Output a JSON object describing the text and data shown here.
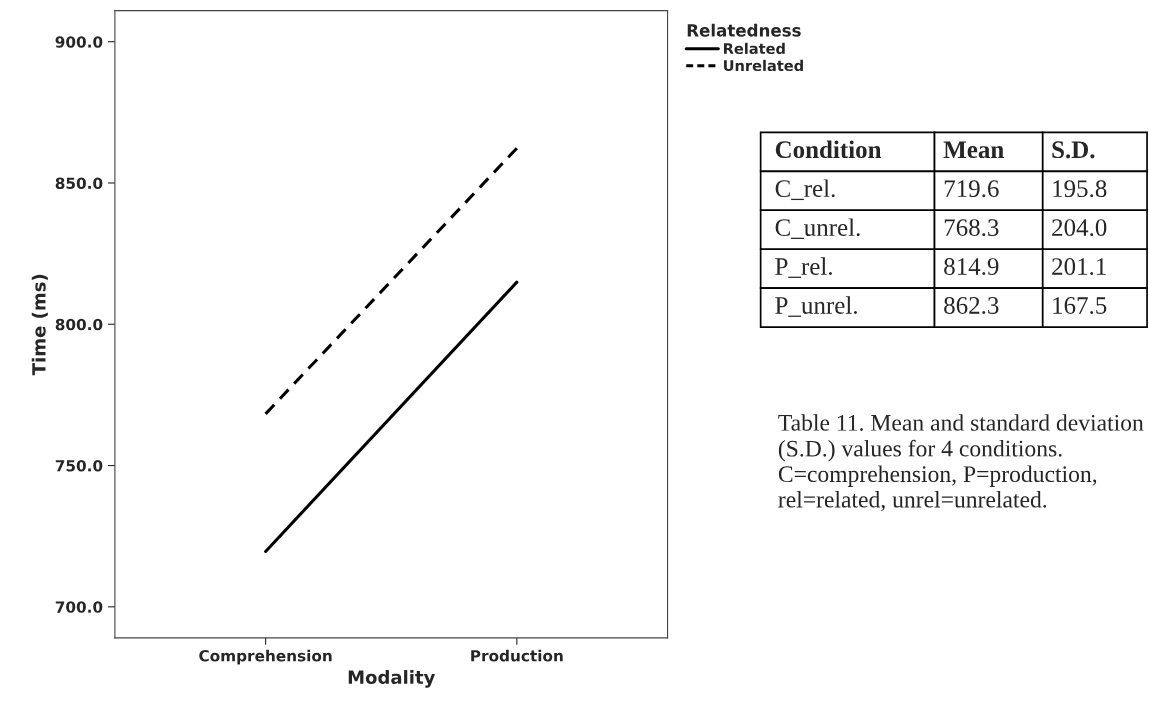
{
  "chart_data": [
    {
      "type": "line",
      "xlabel": "Modality",
      "ylabel": "Time (ms)",
      "legend_title": "Relatedness",
      "legend": "top right",
      "grid": false,
      "marker": "none",
      "categories": [
        "Comprehension",
        "Production"
      ],
      "series": [
        {
          "name": "Related",
          "color": "#000000",
          "line_style": "solid",
          "values": [
            719.6,
            814.9
          ]
        },
        {
          "name": "Unrelated",
          "color": "#000000",
          "line_style": "dashed",
          "values": [
            768.3,
            862.3
          ]
        }
      ],
      "ylim": [
        689,
        911
      ],
      "yticks": [
        {
          "value": 700,
          "label": "700.0"
        },
        {
          "value": 750,
          "label": "750.0"
        },
        {
          "value": 800,
          "label": "800.0"
        },
        {
          "value": 850,
          "label": "850.0"
        },
        {
          "value": 900,
          "label": "900.0"
        }
      ]
    },
    {
      "type": "other",
      "xlabel": "Condition",
      "categories": [
        "C_rel.",
        "C_unrel.",
        "P_rel.",
        "P_unrel."
      ],
      "series": [
        {
          "name": "Mean",
          "values": [
            719.6,
            768.3,
            814.9,
            862.3
          ],
          "value_labels": [
            "719.6",
            "768.3",
            "814.9",
            "862.3"
          ]
        },
        {
          "name": "S.D.",
          "values": [
            195.8,
            204.0,
            201.1,
            167.5
          ],
          "value_labels": [
            "195.8",
            "204.0",
            "201.1",
            "167.5"
          ]
        }
      ],
      "annotations": [
        "Table 11. Mean and standard deviation (S.D.) values for 4 conditions. C=comprehension, P=production, rel=related, unrel=unrelated."
      ]
    }
  ]
}
